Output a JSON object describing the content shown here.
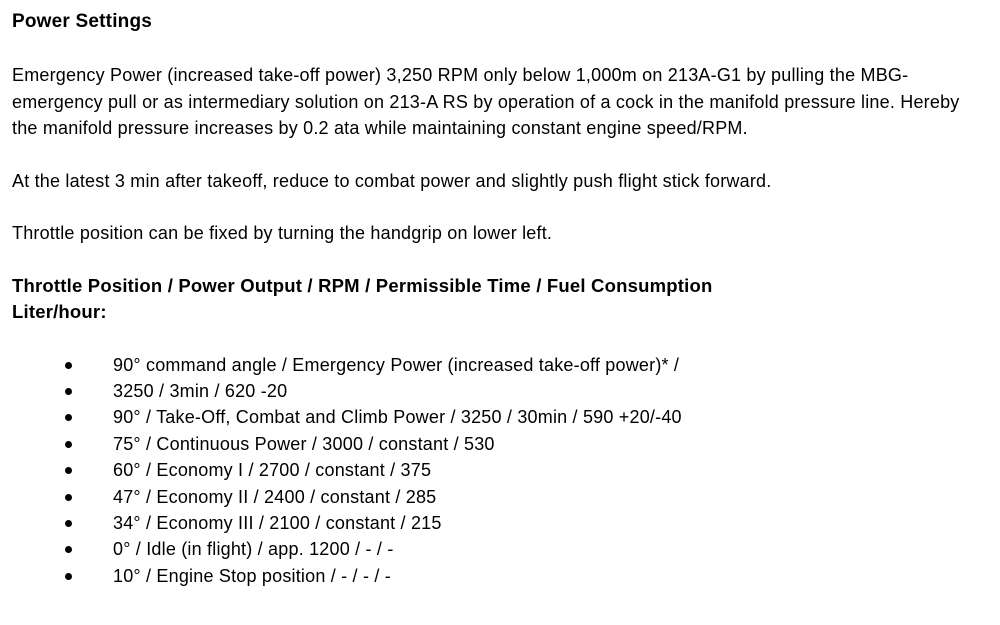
{
  "doc": {
    "title": "Power Settings",
    "paragraphs": [
      "Emergency Power (increased take-off power) 3,250 RPM only below 1,000m on 213A-G1 by pulling the MBG-emergency pull or as intermediary solution on 213-A RS by operation of a cock in the manifold pressure line. Hereby the manifold pressure increases by 0.2 ata while maintaining constant engine speed/RPM.",
      "At the latest 3 min after takeoff, reduce to combat power and slightly push flight stick forward.",
      "Throttle position can be fixed by turning the handgrip on lower left."
    ],
    "subheading": "Throttle Position / Power Output / RPM / Permissible Time / Fuel Consumption Liter/hour:",
    "bullets": [
      "90° command angle / Emergency Power (increased take-off power)* /",
      "3250 / 3min / 620 -20",
      "90° / Take-Off, Combat and Climb Power / 3250 / 30min / 590 +20/-40",
      "75° / Continuous Power / 3000 / constant / 530",
      "60° / Economy I / 2700 / constant / 375",
      "47° / Economy II / 2400 / constant / 285",
      "34° / Economy III / 2100 / constant / 215",
      "0° / Idle (in flight) / app. 1200 / - / -",
      "10° / Engine Stop position / - / - / -"
    ],
    "colors": {
      "text": "#000000",
      "background": "#ffffff"
    }
  }
}
